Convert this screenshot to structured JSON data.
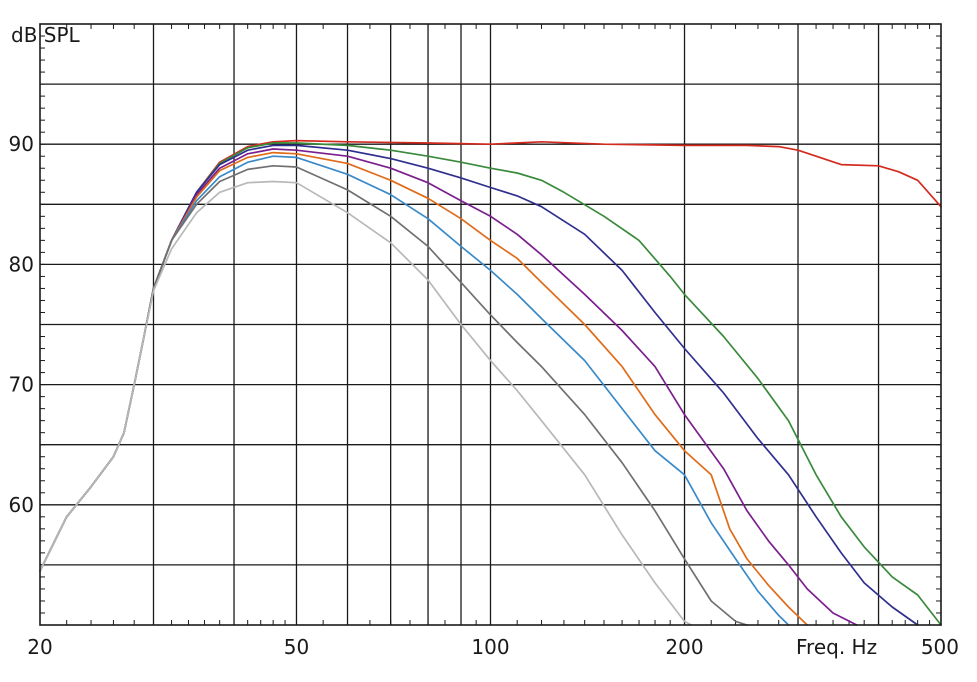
{
  "chart_data": {
    "type": "line",
    "ylabel": "dB SPL",
    "xlabel": "Freq. Hz",
    "x_scale": "log",
    "xlim": [
      20,
      500
    ],
    "ylim": [
      50,
      100
    ],
    "grid": true,
    "x_ticks": [
      20,
      30,
      40,
      50,
      60,
      70,
      80,
      90,
      100,
      200,
      300,
      400,
      500
    ],
    "x_tick_labels": [
      {
        "value": 20,
        "label": "20"
      },
      {
        "value": 50,
        "label": "50"
      },
      {
        "value": 100,
        "label": "100"
      },
      {
        "value": 200,
        "label": "200"
      },
      {
        "value": 500,
        "label": "500"
      }
    ],
    "y_ticks": [
      55,
      60,
      65,
      70,
      75,
      80,
      85,
      90,
      95
    ],
    "y_tick_labels": [
      {
        "value": 60,
        "label": "60"
      },
      {
        "value": 70,
        "label": "70"
      },
      {
        "value": 80,
        "label": "80"
      },
      {
        "value": 90,
        "label": "90"
      }
    ],
    "series": [
      {
        "color": "#d42a1e",
        "points": [
          [
            20,
            54.5
          ],
          [
            22,
            59
          ],
          [
            24,
            61.5
          ],
          [
            26,
            64
          ],
          [
            27,
            66
          ],
          [
            28,
            70
          ],
          [
            29,
            74
          ],
          [
            30,
            78
          ],
          [
            32,
            82
          ],
          [
            35,
            86
          ],
          [
            38,
            88.5
          ],
          [
            42,
            89.8
          ],
          [
            46,
            90.2
          ],
          [
            50,
            90.3
          ],
          [
            60,
            90.2
          ],
          [
            80,
            90.1
          ],
          [
            100,
            90.0
          ],
          [
            120,
            90.2
          ],
          [
            150,
            90.0
          ],
          [
            200,
            89.9
          ],
          [
            250,
            89.9
          ],
          [
            280,
            89.8
          ],
          [
            300,
            89.5
          ],
          [
            320,
            89
          ],
          [
            350,
            88.3
          ],
          [
            400,
            88.2
          ],
          [
            430,
            87.7
          ],
          [
            460,
            87
          ],
          [
            500,
            84.8
          ]
        ]
      },
      {
        "color": "#3a8a3c",
        "points": [
          [
            20,
            54.5
          ],
          [
            22,
            59
          ],
          [
            24,
            61.5
          ],
          [
            26,
            64
          ],
          [
            27,
            66
          ],
          [
            28,
            70
          ],
          [
            29,
            74
          ],
          [
            30,
            78
          ],
          [
            32,
            82
          ],
          [
            35,
            86
          ],
          [
            38,
            88.4
          ],
          [
            42,
            89.7
          ],
          [
            46,
            90.1
          ],
          [
            50,
            90.1
          ],
          [
            60,
            89.9
          ],
          [
            70,
            89.5
          ],
          [
            80,
            89.0
          ],
          [
            90,
            88.5
          ],
          [
            100,
            88.0
          ],
          [
            110,
            87.6
          ],
          [
            120,
            87
          ],
          [
            130,
            86
          ],
          [
            150,
            84
          ],
          [
            170,
            82
          ],
          [
            190,
            79
          ],
          [
            200,
            77.5
          ],
          [
            230,
            74
          ],
          [
            260,
            70.5
          ],
          [
            290,
            67
          ],
          [
            320,
            62.5
          ],
          [
            350,
            59
          ],
          [
            380,
            56.5
          ],
          [
            420,
            54
          ],
          [
            460,
            52.5
          ],
          [
            500,
            49.8
          ]
        ]
      },
      {
        "color": "#2f2f8e",
        "points": [
          [
            20,
            54.5
          ],
          [
            22,
            59
          ],
          [
            24,
            61.5
          ],
          [
            26,
            64
          ],
          [
            27,
            66
          ],
          [
            28,
            70
          ],
          [
            29,
            74
          ],
          [
            30,
            78
          ],
          [
            32,
            82
          ],
          [
            35,
            86
          ],
          [
            38,
            88.3
          ],
          [
            42,
            89.5
          ],
          [
            46,
            89.9
          ],
          [
            50,
            89.9
          ],
          [
            60,
            89.5
          ],
          [
            70,
            88.8
          ],
          [
            80,
            88.0
          ],
          [
            90,
            87.2
          ],
          [
            100,
            86.4
          ],
          [
            110,
            85.7
          ],
          [
            120,
            84.8
          ],
          [
            140,
            82.5
          ],
          [
            160,
            79.5
          ],
          [
            180,
            76
          ],
          [
            200,
            73
          ],
          [
            230,
            69.3
          ],
          [
            260,
            65.5
          ],
          [
            290,
            62.5
          ],
          [
            320,
            59
          ],
          [
            350,
            56
          ],
          [
            380,
            53.5
          ],
          [
            420,
            51.5
          ],
          [
            460,
            49.8
          ]
        ]
      },
      {
        "color": "#7b1f8e",
        "points": [
          [
            20,
            54.5
          ],
          [
            22,
            59
          ],
          [
            24,
            61.5
          ],
          [
            26,
            64
          ],
          [
            27,
            66
          ],
          [
            28,
            70
          ],
          [
            29,
            74
          ],
          [
            30,
            78
          ],
          [
            32,
            82
          ],
          [
            35,
            85.8
          ],
          [
            38,
            88
          ],
          [
            42,
            89.2
          ],
          [
            46,
            89.6
          ],
          [
            50,
            89.5
          ],
          [
            60,
            89.0
          ],
          [
            70,
            88.0
          ],
          [
            80,
            86.8
          ],
          [
            90,
            85.3
          ],
          [
            100,
            84
          ],
          [
            110,
            82.5
          ],
          [
            120,
            80.8
          ],
          [
            140,
            77.5
          ],
          [
            160,
            74.5
          ],
          [
            180,
            71.5
          ],
          [
            200,
            67.5
          ],
          [
            230,
            63
          ],
          [
            250,
            59.5
          ],
          [
            270,
            57
          ],
          [
            290,
            55
          ],
          [
            310,
            53
          ],
          [
            340,
            51
          ],
          [
            370,
            49.8
          ]
        ]
      },
      {
        "color": "#e06c1a",
        "points": [
          [
            20,
            54.5
          ],
          [
            22,
            59
          ],
          [
            24,
            61.5
          ],
          [
            26,
            64
          ],
          [
            27,
            66
          ],
          [
            28,
            70
          ],
          [
            29,
            74
          ],
          [
            30,
            78
          ],
          [
            32,
            82
          ],
          [
            35,
            85.6
          ],
          [
            38,
            87.8
          ],
          [
            42,
            88.9
          ],
          [
            46,
            89.3
          ],
          [
            50,
            89.2
          ],
          [
            60,
            88.4
          ],
          [
            70,
            87.0
          ],
          [
            80,
            85.5
          ],
          [
            90,
            83.8
          ],
          [
            100,
            82
          ],
          [
            110,
            80.5
          ],
          [
            120,
            78.5
          ],
          [
            140,
            75
          ],
          [
            160,
            71.5
          ],
          [
            180,
            67.5
          ],
          [
            200,
            64.5
          ],
          [
            220,
            62.5
          ],
          [
            235,
            58
          ],
          [
            250,
            55.5
          ],
          [
            270,
            53.3
          ],
          [
            290,
            51.5
          ],
          [
            310,
            49.8
          ]
        ]
      },
      {
        "color": "#3a8ac8",
        "points": [
          [
            20,
            54.5
          ],
          [
            22,
            59
          ],
          [
            24,
            61.5
          ],
          [
            26,
            64
          ],
          [
            27,
            66
          ],
          [
            28,
            70
          ],
          [
            29,
            74
          ],
          [
            30,
            78
          ],
          [
            32,
            82
          ],
          [
            35,
            85.3
          ],
          [
            38,
            87.3
          ],
          [
            42,
            88.5
          ],
          [
            46,
            89
          ],
          [
            50,
            88.9
          ],
          [
            60,
            87.5
          ],
          [
            70,
            85.8
          ],
          [
            80,
            83.8
          ],
          [
            90,
            81.5
          ],
          [
            100,
            79.5
          ],
          [
            110,
            77.5
          ],
          [
            120,
            75.5
          ],
          [
            140,
            72
          ],
          [
            160,
            68
          ],
          [
            180,
            64.5
          ],
          [
            200,
            62.5
          ],
          [
            220,
            58.5
          ],
          [
            240,
            55.5
          ],
          [
            260,
            52.8
          ],
          [
            280,
            50.8
          ],
          [
            290,
            49.8
          ]
        ]
      },
      {
        "color": "#707070",
        "points": [
          [
            20,
            54.5
          ],
          [
            22,
            59
          ],
          [
            24,
            61.5
          ],
          [
            26,
            64
          ],
          [
            27,
            66
          ],
          [
            28,
            70
          ],
          [
            29,
            74
          ],
          [
            30,
            78
          ],
          [
            32,
            82
          ],
          [
            35,
            85
          ],
          [
            38,
            86.9
          ],
          [
            42,
            87.9
          ],
          [
            46,
            88.2
          ],
          [
            50,
            88.1
          ],
          [
            60,
            86.2
          ],
          [
            70,
            84
          ],
          [
            80,
            81.5
          ],
          [
            90,
            78.5
          ],
          [
            100,
            75.8
          ],
          [
            110,
            73.5
          ],
          [
            120,
            71.5
          ],
          [
            140,
            67.5
          ],
          [
            160,
            63.5
          ],
          [
            180,
            59.5
          ],
          [
            200,
            55.5
          ],
          [
            220,
            52
          ],
          [
            240,
            50.3
          ],
          [
            250,
            49.8
          ]
        ]
      },
      {
        "color": "#b8b8b8",
        "points": [
          [
            20,
            54.5
          ],
          [
            22,
            59
          ],
          [
            24,
            61.5
          ],
          [
            26,
            64
          ],
          [
            27,
            66
          ],
          [
            28,
            70
          ],
          [
            29,
            74
          ],
          [
            30,
            77.8
          ],
          [
            32,
            81.3
          ],
          [
            35,
            84.3
          ],
          [
            38,
            86
          ],
          [
            42,
            86.8
          ],
          [
            46,
            86.9
          ],
          [
            50,
            86.8
          ],
          [
            60,
            84.3
          ],
          [
            70,
            81.8
          ],
          [
            80,
            78.7
          ],
          [
            90,
            75
          ],
          [
            100,
            72
          ],
          [
            110,
            69.5
          ],
          [
            120,
            67
          ],
          [
            140,
            62.5
          ],
          [
            160,
            57.5
          ],
          [
            180,
            53.5
          ],
          [
            200,
            50.3
          ],
          [
            205,
            49.8
          ]
        ]
      }
    ]
  }
}
